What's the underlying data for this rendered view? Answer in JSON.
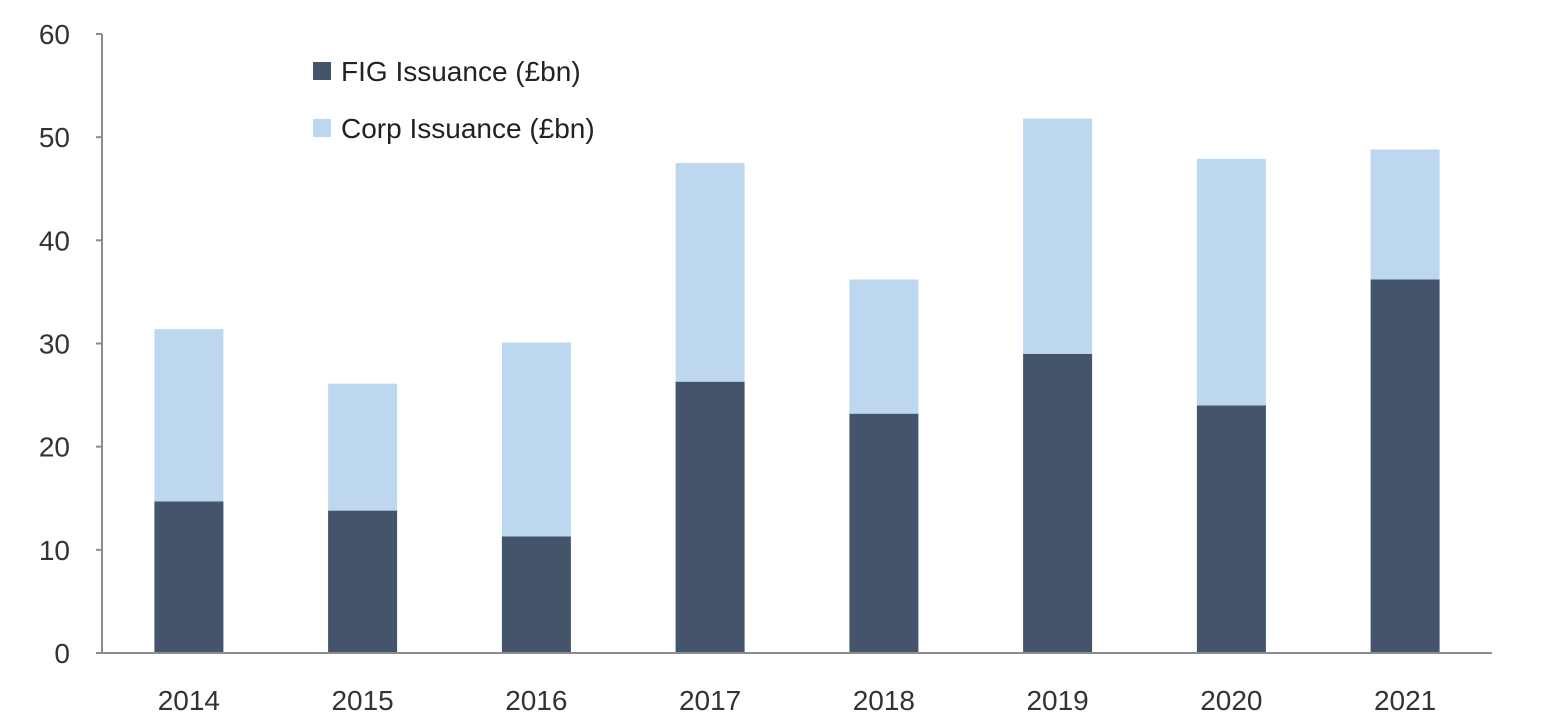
{
  "chart_data": {
    "type": "bar",
    "stacked": true,
    "categories": [
      "2014",
      "2015",
      "2016",
      "2017",
      "2018",
      "2019",
      "2020",
      "2021"
    ],
    "series": [
      {
        "name": "FIG Issuance (£bn)",
        "color": "#44546a",
        "values": [
          14.7,
          13.8,
          11.3,
          26.3,
          23.2,
          29.0,
          24.0,
          36.2
        ]
      },
      {
        "name": "Corp Issuance (£bn)",
        "color": "#bdd7ee",
        "values": [
          16.7,
          12.3,
          18.8,
          21.2,
          13.0,
          22.8,
          23.9,
          12.6
        ]
      }
    ],
    "title": "",
    "xlabel": "",
    "ylabel": "",
    "ylim": [
      0,
      60
    ],
    "yticks": [
      "0",
      "10",
      "20",
      "30",
      "40",
      "50",
      "60"
    ],
    "grid": false,
    "legend_position": "top-left"
  }
}
